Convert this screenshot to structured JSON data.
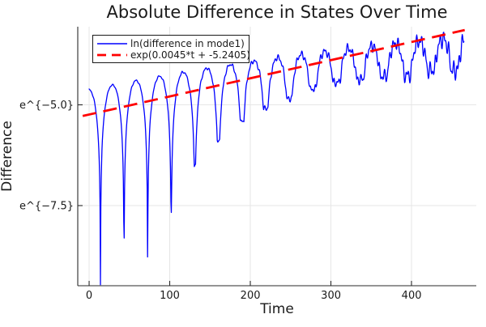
{
  "window": {
    "title": "Absolute Difference in States Over Time"
  },
  "chart_data": {
    "type": "line",
    "title": "Absolute Difference in States Over Time",
    "xlabel": "Time",
    "ylabel": "Difference",
    "x_axis": {
      "ticks": [
        0,
        100,
        200,
        300,
        400
      ],
      "lim": [
        -14.1,
        480.4
      ]
    },
    "y_axis": {
      "scale": "log-natural",
      "ticks": [
        {
          "label": "e^{−5.0}",
          "ln": -5.0
        },
        {
          "label": "e^{−7.5}",
          "ln": -7.5
        }
      ],
      "lim_ln": [
        -9.488,
        -3.062
      ]
    },
    "grid": true,
    "grid_color": "#e6e6e6",
    "axis_color": "#2a2a2a",
    "background": "#ffffff",
    "legend": {
      "position": "top-left",
      "border_color": "#1a1a1a",
      "background": "#ffffff"
    },
    "series": [
      {
        "name": "ln(difference in mode1)",
        "color": "#0000ff",
        "line_style": "solid",
        "line_width": 1.3,
        "model": {
          "kind": "log_abs_oscillation",
          "description": "ln|difference in mode1|: arch-shaped lobes separated by sharp cusps (zero crossings); lobe peaks grow roughly exponentially in time; curve becomes noisy/jagged toward the right",
          "t_start": 0,
          "t_end": 465,
          "dt": 0.5,
          "period": 29.3,
          "first_cusp_t": 14,
          "peak_env_intercept": -4.62,
          "peak_env_slope": 0.004,
          "peak_env_quad": -2.6e-06,
          "cusp_depths_below_peak": [
            4.89,
            3.91,
            4.43,
            3.44,
            2.37,
            1.87,
            1.46,
            1.22,
            1.06,
            0.9,
            0.81,
            0.8,
            0.78,
            0.82,
            0.75,
            0.8
          ],
          "noise_base": 0.02,
          "noise_amp": 0.26,
          "noise_pow": 2.2,
          "noise_freq1": 1.1,
          "noise_freq2": 1.9
        }
      },
      {
        "name": "exp(0.0045*t + -5.2405)",
        "color": "#ff0000",
        "line_style": "dash",
        "line_width": 2.8,
        "dash_pattern": "17 9",
        "model": {
          "kind": "exp_fit_line",
          "slope": 0.0045,
          "intercept": -5.2405,
          "t_start": -8,
          "t_end": 466
        }
      }
    ]
  }
}
